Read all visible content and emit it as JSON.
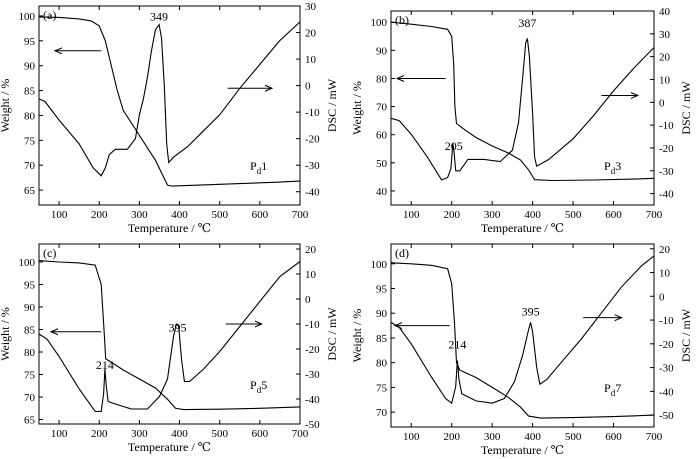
{
  "chart_data": [
    {
      "type": "line",
      "panel_label": "(a)",
      "sample_main": "P",
      "sample_sub": "d",
      "sample_num": "1",
      "xlabel": "Temperature / ℃",
      "ylabel_left": "Weight / %",
      "ylabel_right": "DSC / mW",
      "xlim": [
        50,
        700
      ],
      "x_ticks": [
        100,
        200,
        300,
        400,
        500,
        600,
        700
      ],
      "ylim_left": [
        62,
        102
      ],
      "left_ticks": [
        65,
        70,
        75,
        80,
        85,
        90,
        95,
        100
      ],
      "ylim_right": [
        -45,
        30
      ],
      "right_ticks": [
        -40,
        -30,
        -20,
        -10,
        0,
        10,
        20,
        30
      ],
      "annotations": [
        {
          "text": "349",
          "x": 349,
          "y": 24.5,
          "axis": "right"
        }
      ],
      "arrow_left": {
        "y": 93,
        "x_from": 90,
        "x_to": 205
      },
      "arrow_right": {
        "y": -1,
        "x_from": 520,
        "x_to": 630
      },
      "series": [
        {
          "axis": "left",
          "points": [
            [
              50,
              99.8
            ],
            [
              100,
              99.7
            ],
            [
              150,
              99.4
            ],
            [
              180,
              99.0
            ],
            [
              200,
              98.0
            ],
            [
              215,
              95.0
            ],
            [
              230,
              90.0
            ],
            [
              245,
              85.0
            ],
            [
              260,
              81.0
            ],
            [
              280,
              78.5
            ],
            [
              300,
              76.0
            ],
            [
              320,
              73.5
            ],
            [
              340,
              71.0
            ],
            [
              355,
              68.5
            ],
            [
              370,
              66.0
            ],
            [
              380,
              65.8
            ],
            [
              450,
              66.0
            ],
            [
              550,
              66.3
            ],
            [
              650,
              66.6
            ],
            [
              700,
              66.8
            ]
          ]
        },
        {
          "axis": "right",
          "points": [
            [
              50,
              -5
            ],
            [
              65,
              -6
            ],
            [
              100,
              -13
            ],
            [
              150,
              -22
            ],
            [
              185,
              -31
            ],
            [
              205,
              -34
            ],
            [
              215,
              -31
            ],
            [
              225,
              -26
            ],
            [
              240,
              -24
            ],
            [
              270,
              -24
            ],
            [
              290,
              -20
            ],
            [
              300,
              -11
            ],
            [
              310,
              -5
            ],
            [
              320,
              3
            ],
            [
              330,
              13
            ],
            [
              340,
              21
            ],
            [
              349,
              23
            ],
            [
              355,
              18
            ],
            [
              362,
              0
            ],
            [
              368,
              -22
            ],
            [
              373,
              -29
            ],
            [
              385,
              -27
            ],
            [
              420,
              -23
            ],
            [
              460,
              -17
            ],
            [
              500,
              -11
            ],
            [
              550,
              -1
            ],
            [
              600,
              8
            ],
            [
              650,
              17
            ],
            [
              700,
              24
            ]
          ]
        }
      ]
    },
    {
      "type": "line",
      "panel_label": "(b)",
      "sample_main": "P",
      "sample_sub": "d",
      "sample_num": "3",
      "xlabel": "Temperature / ℃",
      "ylabel_left": "Weight / %",
      "ylabel_right": "DSC / mW",
      "xlim": [
        50,
        700
      ],
      "x_ticks": [
        100,
        200,
        300,
        400,
        500,
        600,
        700
      ],
      "ylim_left": [
        35,
        104
      ],
      "left_ticks": [
        40,
        50,
        60,
        70,
        80,
        90,
        100
      ],
      "ylim_right": [
        -45,
        40
      ],
      "right_ticks": [
        -40,
        -30,
        -20,
        -10,
        0,
        10,
        20,
        30,
        40
      ],
      "annotations": [
        {
          "text": "387",
          "x": 387,
          "y": 33,
          "axis": "right"
        },
        {
          "text": "205",
          "x": 205,
          "y": -21,
          "axis": "right"
        }
      ],
      "arrow_left": {
        "y": 80,
        "x_from": 65,
        "x_to": 185
      },
      "arrow_right": {
        "y": 3,
        "x_from": 570,
        "x_to": 660
      },
      "series": [
        {
          "axis": "left",
          "points": [
            [
              50,
              100
            ],
            [
              100,
              99.3
            ],
            [
              150,
              98.5
            ],
            [
              190,
              97.5
            ],
            [
              200,
              95.0
            ],
            [
              205,
              85.0
            ],
            [
              208,
              70.0
            ],
            [
              212,
              64.0
            ],
            [
              230,
              62.0
            ],
            [
              260,
              59.0
            ],
            [
              300,
              56.0
            ],
            [
              340,
              53.5
            ],
            [
              370,
              51.0
            ],
            [
              390,
              47.5
            ],
            [
              405,
              44.0
            ],
            [
              450,
              43.7
            ],
            [
              550,
              43.9
            ],
            [
              650,
              44.2
            ],
            [
              700,
              44.5
            ]
          ]
        },
        {
          "axis": "right",
          "points": [
            [
              50,
              -7
            ],
            [
              70,
              -8
            ],
            [
              100,
              -14
            ],
            [
              140,
              -24
            ],
            [
              175,
              -34
            ],
            [
              190,
              -33
            ],
            [
              198,
              -29
            ],
            [
              203,
              -18
            ],
            [
              206,
              -22
            ],
            [
              210,
              -30
            ],
            [
              220,
              -30
            ],
            [
              240,
              -25
            ],
            [
              280,
              -25
            ],
            [
              320,
              -26
            ],
            [
              350,
              -21
            ],
            [
              365,
              -9
            ],
            [
              375,
              10
            ],
            [
              383,
              26
            ],
            [
              387,
              28
            ],
            [
              392,
              20
            ],
            [
              400,
              -5
            ],
            [
              405,
              -24
            ],
            [
              410,
              -28
            ],
            [
              440,
              -25
            ],
            [
              500,
              -16
            ],
            [
              550,
              -6
            ],
            [
              600,
              5
            ],
            [
              650,
              15
            ],
            [
              700,
              24
            ]
          ]
        }
      ]
    },
    {
      "type": "line",
      "panel_label": "(c)",
      "sample_main": "P",
      "sample_sub": "d",
      "sample_num": "5",
      "xlabel": "Temperature / ℃",
      "ylabel_left": "Weight / %",
      "ylabel_right": "DSC / mW",
      "xlim": [
        50,
        700
      ],
      "x_ticks": [
        100,
        200,
        300,
        400,
        500,
        600,
        700
      ],
      "ylim_left": [
        64,
        104
      ],
      "left_ticks": [
        65,
        70,
        75,
        80,
        85,
        90,
        95,
        100
      ],
      "ylim_right": [
        -50,
        22
      ],
      "right_ticks": [
        -50,
        -40,
        -30,
        -20,
        -10,
        0,
        10,
        20
      ],
      "annotations": [
        {
          "text": "395",
          "x": 395,
          "y": -13,
          "axis": "right"
        },
        {
          "text": "214",
          "x": 214,
          "y": -28,
          "axis": "right"
        }
      ],
      "arrow_left": {
        "y": 84.5,
        "x_from": 80,
        "x_to": 205
      },
      "arrow_right": {
        "y": -10,
        "x_from": 515,
        "x_to": 605
      },
      "series": [
        {
          "axis": "left",
          "points": [
            [
              50,
              100.3
            ],
            [
              100,
              100.0
            ],
            [
              150,
              99.8
            ],
            [
              190,
              99.3
            ],
            [
              205,
              95.0
            ],
            [
              212,
              85.0
            ],
            [
              216,
              78.5
            ],
            [
              225,
              78.0
            ],
            [
              260,
              76.0
            ],
            [
              300,
              74.0
            ],
            [
              340,
              72.0
            ],
            [
              370,
              69.5
            ],
            [
              390,
              67.5
            ],
            [
              410,
              67.2
            ],
            [
              500,
              67.3
            ],
            [
              600,
              67.5
            ],
            [
              700,
              67.8
            ]
          ]
        },
        {
          "axis": "right",
          "points": [
            [
              50,
              -14
            ],
            [
              70,
              -16
            ],
            [
              100,
              -23
            ],
            [
              150,
              -36
            ],
            [
              190,
              -45
            ],
            [
              205,
              -45
            ],
            [
              211,
              -38
            ],
            [
              214,
              -28
            ],
            [
              217,
              -34
            ],
            [
              222,
              -41
            ],
            [
              240,
              -42
            ],
            [
              280,
              -44
            ],
            [
              320,
              -44
            ],
            [
              350,
              -39
            ],
            [
              370,
              -32
            ],
            [
              385,
              -15
            ],
            [
              392,
              -10
            ],
            [
              398,
              -11
            ],
            [
              405,
              -24
            ],
            [
              412,
              -33
            ],
            [
              425,
              -33
            ],
            [
              460,
              -28
            ],
            [
              500,
              -21
            ],
            [
              550,
              -11
            ],
            [
              600,
              -1
            ],
            [
              650,
              9
            ],
            [
              700,
              15
            ]
          ]
        }
      ]
    },
    {
      "type": "line",
      "panel_label": "(d)",
      "sample_main": "P",
      "sample_sub": "d",
      "sample_num": "7",
      "xlabel": "Temperature / ℃",
      "ylabel_left": "Weight / %",
      "ylabel_right": "DSC / mW",
      "xlim": [
        50,
        700
      ],
      "x_ticks": [
        100,
        200,
        300,
        400,
        500,
        600,
        700
      ],
      "ylim_left": [
        67,
        104
      ],
      "left_ticks": [
        70,
        75,
        80,
        85,
        90,
        95,
        100
      ],
      "ylim_right": [
        -55,
        22
      ],
      "right_ticks": [
        -50,
        -40,
        -30,
        -20,
        -10,
        0,
        10,
        20
      ],
      "annotations": [
        {
          "text": "395",
          "x": 395,
          "y": -8,
          "axis": "right"
        },
        {
          "text": "214",
          "x": 214,
          "y": -22,
          "axis": "right"
        }
      ],
      "arrow_left": {
        "y": 87.5,
        "x_from": 60,
        "x_to": 195
      },
      "arrow_right": {
        "y": -9,
        "x_from": 525,
        "x_to": 620
      },
      "series": [
        {
          "axis": "left",
          "points": [
            [
              50,
              100.2
            ],
            [
              100,
              100.0
            ],
            [
              150,
              99.7
            ],
            [
              190,
              99.0
            ],
            [
              200,
              96.0
            ],
            [
              207,
              88.0
            ],
            [
              212,
              80.0
            ],
            [
              220,
              78.5
            ],
            [
              260,
              77.0
            ],
            [
              300,
              75.0
            ],
            [
              340,
              73.0
            ],
            [
              370,
              71.0
            ],
            [
              390,
              69.2
            ],
            [
              420,
              68.8
            ],
            [
              500,
              68.9
            ],
            [
              600,
              69.1
            ],
            [
              700,
              69.4
            ]
          ]
        },
        {
          "axis": "right",
          "points": [
            [
              50,
              -11
            ],
            [
              70,
              -13
            ],
            [
              100,
              -20
            ],
            [
              150,
              -34
            ],
            [
              185,
              -43
            ],
            [
              200,
              -45
            ],
            [
              210,
              -38
            ],
            [
              214,
              -27
            ],
            [
              218,
              -35
            ],
            [
              225,
              -41
            ],
            [
              260,
              -44
            ],
            [
              300,
              -45
            ],
            [
              330,
              -43
            ],
            [
              355,
              -36
            ],
            [
              375,
              -25
            ],
            [
              390,
              -14
            ],
            [
              395,
              -11
            ],
            [
              400,
              -15
            ],
            [
              410,
              -30
            ],
            [
              418,
              -37
            ],
            [
              435,
              -35
            ],
            [
              470,
              -28
            ],
            [
              520,
              -18
            ],
            [
              570,
              -7
            ],
            [
              620,
              4
            ],
            [
              670,
              13
            ],
            [
              700,
              17
            ]
          ]
        }
      ]
    }
  ]
}
